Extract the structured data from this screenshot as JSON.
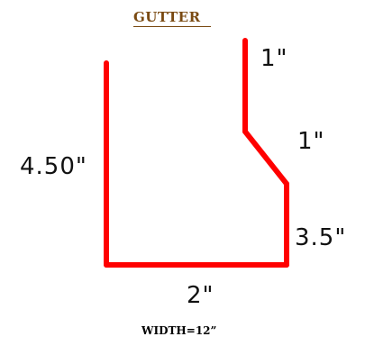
{
  "title": "GUTTER",
  "dimensions": {
    "left_height": "4.50\"",
    "top_lip": "1\"",
    "slant": "1\"",
    "right_height": "3.5\"",
    "bottom_width": "2\""
  },
  "footer": "WIDTH=12”",
  "colors": {
    "profile_line": "#ff0000",
    "title": "#7a4a12",
    "text": "#111111"
  }
}
